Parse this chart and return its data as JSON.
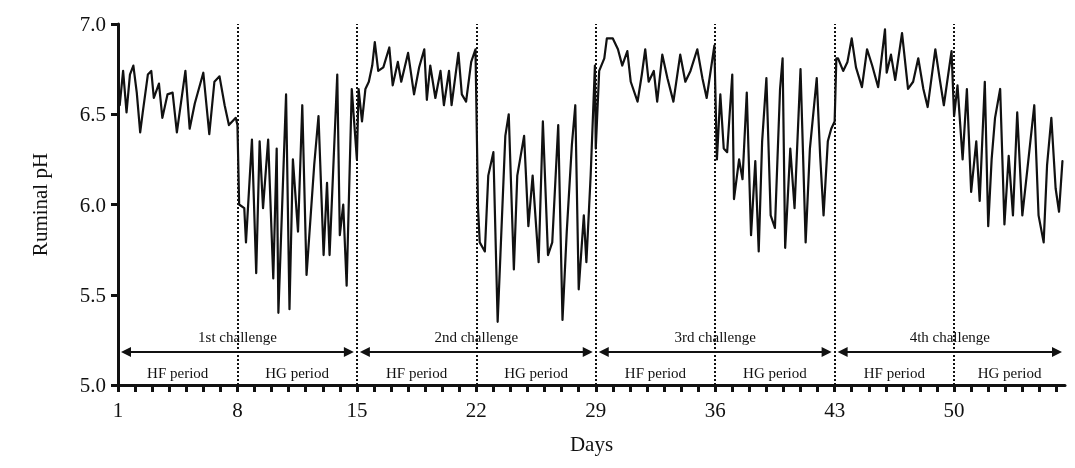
{
  "chart_data": {
    "type": "line",
    "xlabel": "Days",
    "ylabel": "Ruminal pH",
    "xlim": [
      1,
      56.5
    ],
    "ylim": [
      5,
      7
    ],
    "xticks": [
      1,
      {
        "value": 2,
        "label": null
      },
      {
        "value": 3,
        "label": null
      },
      {
        "value": 4,
        "label": null
      },
      {
        "value": 5,
        "label": null
      },
      {
        "value": 6,
        "label": null
      },
      {
        "value": 7,
        "label": null
      },
      8,
      {
        "value": 9,
        "label": null
      },
      {
        "value": 10,
        "label": null
      },
      {
        "value": 11,
        "label": null
      },
      {
        "value": 12,
        "label": null
      },
      {
        "value": 13,
        "label": null
      },
      {
        "value": 14,
        "label": null
      },
      15,
      {
        "value": 16,
        "label": null
      },
      {
        "value": 17,
        "label": null
      },
      {
        "value": 18,
        "label": null
      },
      {
        "value": 19,
        "label": null
      },
      {
        "value": 20,
        "label": null
      },
      {
        "value": 21,
        "label": null
      },
      22,
      {
        "value": 23,
        "label": null
      },
      {
        "value": 24,
        "label": null
      },
      {
        "value": 25,
        "label": null
      },
      {
        "value": 26,
        "label": null
      },
      {
        "value": 27,
        "label": null
      },
      {
        "value": 28,
        "label": null
      },
      29,
      {
        "value": 30,
        "label": null
      },
      {
        "value": 31,
        "label": null
      },
      {
        "value": 32,
        "label": null
      },
      {
        "value": 33,
        "label": null
      },
      {
        "value": 34,
        "label": null
      },
      {
        "value": 35,
        "label": null
      },
      36,
      {
        "value": 37,
        "label": null
      },
      {
        "value": 38,
        "label": null
      },
      {
        "value": 39,
        "label": null
      },
      {
        "value": 40,
        "label": null
      },
      {
        "value": 41,
        "label": null
      },
      {
        "value": 42,
        "label": null
      },
      43,
      {
        "value": 44,
        "label": null
      },
      {
        "value": 45,
        "label": null
      },
      {
        "value": 46,
        "label": null
      },
      {
        "value": 47,
        "label": null
      },
      {
        "value": 48,
        "label": null
      },
      {
        "value": 49,
        "label": null
      },
      50,
      {
        "value": 51,
        "label": null
      },
      {
        "value": 52,
        "label": null
      },
      {
        "value": 53,
        "label": null
      },
      {
        "value": 54,
        "label": null
      },
      {
        "value": 55,
        "label": null
      },
      {
        "value": 56,
        "label": null
      }
    ],
    "yticks": [
      {
        "value": 5,
        "label": "5.0"
      },
      {
        "value": 5.5,
        "label": "5.5"
      },
      {
        "value": 6,
        "label": "6.0"
      },
      {
        "value": 6.5,
        "label": "6.5"
      },
      {
        "value": 7,
        "label": "7.0"
      }
    ],
    "grid": false,
    "marker": "none",
    "line_style": "solid",
    "series": [
      {
        "color": "#111111",
        "x": [
          1.1,
          1.3,
          1.5,
          1.7,
          1.9,
          2.1,
          2.3,
          2.45,
          2.75,
          2.95,
          3.1,
          3.4,
          3.6,
          3.9,
          4.2,
          4.45,
          4.95,
          5.2,
          5.5,
          6.0,
          6.35,
          6.65,
          6.95,
          7.25,
          7.5,
          7.9,
          8.0,
          8.1,
          8.4,
          8.5,
          8.85,
          9.1,
          9.3,
          9.5,
          9.8,
          10.1,
          10.3,
          10.4,
          10.85,
          11.05,
          11.25,
          11.55,
          11.8,
          12.05,
          12.5,
          12.75,
          13.05,
          13.25,
          13.4,
          13.85,
          14.0,
          14.2,
          14.4,
          14.7,
          15.0,
          15.1,
          15.3,
          15.5,
          15.7,
          15.9,
          16.05,
          16.25,
          16.55,
          16.9,
          17.1,
          17.4,
          17.6,
          18.0,
          18.35,
          18.65,
          18.95,
          19.1,
          19.3,
          19.6,
          19.9,
          20.1,
          20.4,
          20.55,
          20.95,
          21.15,
          21.4,
          21.7,
          21.95,
          22.1,
          22.2,
          22.5,
          22.7,
          23.0,
          23.25,
          23.7,
          23.9,
          24.2,
          24.4,
          24.8,
          25.05,
          25.3,
          25.65,
          25.9,
          26.2,
          26.45,
          26.8,
          27.05,
          27.3,
          27.6,
          27.8,
          28.0,
          28.3,
          28.45,
          28.7,
          28.95,
          29.0,
          29.2,
          29.5,
          29.65,
          30.0,
          30.3,
          30.55,
          30.85,
          31.05,
          31.45,
          31.7,
          31.9,
          32.1,
          32.4,
          32.6,
          32.9,
          33.2,
          33.55,
          33.95,
          34.25,
          34.55,
          34.95,
          35.25,
          35.5,
          35.95,
          36.1,
          36.3,
          36.5,
          36.7,
          37.0,
          37.1,
          37.4,
          37.6,
          37.85,
          38.1,
          38.35,
          38.55,
          38.75,
          39.0,
          39.25,
          39.5,
          39.8,
          39.95,
          40.1,
          40.4,
          40.65,
          41.0,
          41.3,
          41.55,
          41.95,
          42.15,
          42.35,
          42.6,
          42.8,
          43.0,
          43.1,
          43.2,
          43.5,
          43.75,
          44.0,
          44.25,
          44.6,
          44.9,
          45.2,
          45.55,
          45.95,
          46.05,
          46.3,
          46.55,
          46.95,
          47.3,
          47.6,
          47.9,
          48.2,
          48.45,
          48.9,
          49.15,
          49.4,
          49.85,
          50.0,
          50.2,
          50.5,
          50.75,
          51.0,
          51.3,
          51.5,
          51.8,
          52.0,
          52.2,
          52.4,
          52.7,
          52.95,
          53.2,
          53.45,
          53.7,
          54.0,
          54.3,
          54.7,
          54.95,
          55.25,
          55.45,
          55.7,
          55.95,
          56.15,
          56.35
        ],
        "values": [
          6.55,
          6.74,
          6.51,
          6.72,
          6.77,
          6.62,
          6.4,
          6.51,
          6.72,
          6.74,
          6.59,
          6.67,
          6.48,
          6.61,
          6.62,
          6.4,
          6.74,
          6.42,
          6.56,
          6.73,
          6.39,
          6.68,
          6.71,
          6.55,
          6.44,
          6.48,
          6.44,
          6.0,
          5.98,
          5.79,
          6.36,
          5.62,
          6.35,
          5.98,
          6.36,
          5.59,
          6.31,
          5.4,
          6.61,
          5.42,
          6.25,
          5.85,
          6.55,
          5.61,
          6.22,
          6.49,
          5.72,
          6.12,
          5.72,
          6.72,
          5.83,
          6.0,
          5.55,
          6.64,
          6.25,
          6.64,
          6.46,
          6.64,
          6.68,
          6.77,
          6.9,
          6.74,
          6.76,
          6.87,
          6.66,
          6.79,
          6.68,
          6.84,
          6.61,
          6.76,
          6.86,
          6.58,
          6.77,
          6.59,
          6.74,
          6.55,
          6.74,
          6.55,
          6.84,
          6.61,
          6.57,
          6.79,
          6.86,
          5.98,
          5.79,
          5.74,
          6.16,
          6.29,
          5.35,
          6.38,
          6.5,
          5.64,
          6.16,
          6.38,
          5.88,
          6.16,
          5.68,
          6.46,
          5.72,
          5.79,
          6.44,
          5.36,
          5.85,
          6.33,
          6.55,
          5.53,
          5.94,
          5.68,
          6.16,
          6.77,
          6.31,
          6.74,
          6.81,
          6.92,
          6.92,
          6.86,
          6.77,
          6.85,
          6.68,
          6.57,
          6.72,
          6.86,
          6.68,
          6.74,
          6.57,
          6.83,
          6.7,
          6.57,
          6.83,
          6.68,
          6.74,
          6.86,
          6.7,
          6.59,
          6.88,
          6.25,
          6.61,
          6.31,
          6.29,
          6.72,
          6.03,
          6.25,
          6.14,
          6.62,
          5.83,
          6.24,
          5.74,
          6.35,
          6.7,
          5.94,
          5.87,
          6.64,
          6.81,
          5.76,
          6.31,
          5.98,
          6.75,
          5.79,
          6.31,
          6.7,
          6.27,
          5.94,
          6.35,
          6.42,
          6.46,
          6.81,
          6.81,
          6.74,
          6.79,
          6.92,
          6.76,
          6.65,
          6.86,
          6.77,
          6.65,
          6.97,
          6.73,
          6.83,
          6.69,
          6.95,
          6.64,
          6.68,
          6.81,
          6.64,
          6.54,
          6.86,
          6.7,
          6.55,
          6.85,
          6.49,
          6.66,
          6.25,
          6.64,
          6.07,
          6.35,
          6.02,
          6.68,
          5.88,
          6.25,
          6.48,
          6.64,
          5.89,
          6.27,
          5.94,
          6.51,
          5.94,
          6.2,
          6.55,
          5.94,
          5.79,
          6.22,
          6.48,
          6.09,
          5.96,
          6.24
        ]
      }
    ],
    "ref_lines": [
      {
        "axis": "x",
        "value": 8,
        "color": "#111111",
        "line_style": "dotted"
      },
      {
        "axis": "x",
        "value": 15,
        "color": "#111111",
        "line_style": "dotted"
      },
      {
        "axis": "x",
        "value": 22,
        "color": "#111111",
        "line_style": "dotted"
      },
      {
        "axis": "x",
        "value": 29,
        "color": "#111111",
        "line_style": "dotted"
      },
      {
        "axis": "x",
        "value": 36,
        "color": "#111111",
        "line_style": "dotted"
      },
      {
        "axis": "x",
        "value": 43,
        "color": "#111111",
        "line_style": "dotted"
      },
      {
        "axis": "x",
        "value": 50,
        "color": "#111111",
        "line_style": "dotted"
      }
    ],
    "annotations": [
      "1st challenge",
      "2nd challenge",
      "3rd challenge",
      "4th challenge",
      "HF period",
      "HG period",
      "HF period",
      "HG period",
      "HF period",
      "HG period",
      "HF period",
      "HG period"
    ]
  }
}
